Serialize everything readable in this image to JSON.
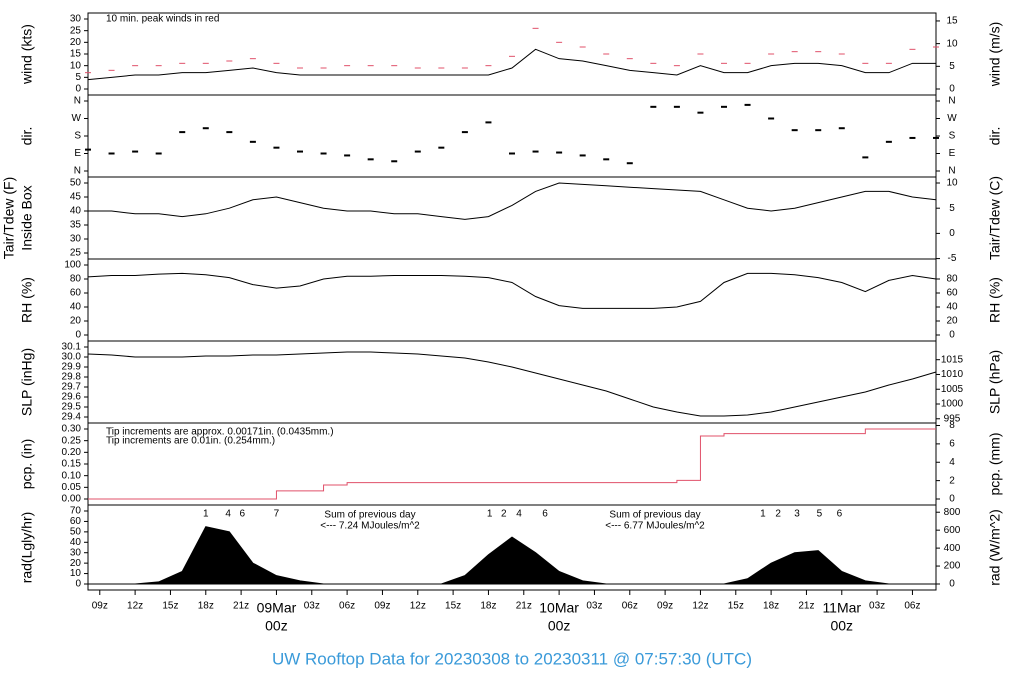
{
  "title": "UW Rooftop Data for 20230308  to  20230311 @ 07:57:30  (UTC)",
  "chart_data": [
    {
      "type": "line",
      "ylabel": "wind (kts)",
      "y2label": "wind (m/s)",
      "annotations": [
        {
          "text": "10 min. peak winds in red",
          "color": "#d0506a"
        }
      ],
      "xlim": [
        8,
        80
      ],
      "ylim": [
        0,
        30
      ],
      "yticks": [
        0,
        5,
        10,
        15,
        20,
        25,
        30
      ],
      "y2lim": [
        0,
        15.43
      ],
      "y2ticks": [
        0,
        5,
        10,
        15
      ],
      "x": [
        8,
        10,
        12,
        14,
        16,
        18,
        20,
        22,
        24,
        26,
        28,
        30,
        32,
        34,
        36,
        38,
        40,
        42,
        44,
        46,
        48,
        50,
        52,
        54,
        56,
        58,
        60,
        62,
        64,
        66,
        68,
        70,
        72,
        74,
        76,
        78,
        80
      ],
      "series": [
        {
          "color": "#000000",
          "style": "line",
          "values": [
            4,
            5,
            6,
            6,
            7,
            7,
            8,
            9,
            7,
            6,
            6,
            6,
            6,
            6,
            6,
            6,
            6,
            6,
            9,
            17,
            13,
            12,
            10,
            8,
            7,
            6,
            10,
            7,
            7,
            10,
            11,
            11,
            10,
            7,
            7,
            11,
            11
          ]
        },
        {
          "color": "#e0506a",
          "style": "dash",
          "values": [
            7,
            8,
            10,
            10,
            11,
            11,
            12,
            13,
            11,
            9,
            9,
            10,
            10,
            10,
            9,
            9,
            9,
            10,
            14,
            26,
            20,
            18,
            15,
            13,
            11,
            10,
            15,
            11,
            11,
            15,
            16,
            16,
            15,
            11,
            11,
            17,
            18
          ]
        }
      ]
    },
    {
      "type": "scatter",
      "ylabel": "dir.",
      "y2label": "dir.",
      "xlim": [
        8,
        80
      ],
      "ylim": [
        0,
        360
      ],
      "yticks": [
        {
          "value": 0,
          "label": "N"
        },
        {
          "value": 90,
          "label": "E"
        },
        {
          "value": 180,
          "label": "S"
        },
        {
          "value": 270,
          "label": "W"
        },
        {
          "value": 360,
          "label": "N"
        }
      ],
      "y2lim": [
        0,
        360
      ],
      "y2ticks": [
        {
          "value": 0,
          "label": "N"
        },
        {
          "value": 90,
          "label": "E"
        },
        {
          "value": 180,
          "label": "S"
        },
        {
          "value": 270,
          "label": "W"
        },
        {
          "value": 360,
          "label": "N"
        }
      ],
      "x": [
        8,
        10,
        12,
        14,
        16,
        18,
        20,
        22,
        24,
        26,
        28,
        30,
        32,
        34,
        36,
        38,
        40,
        42,
        44,
        46,
        48,
        50,
        52,
        54,
        56,
        58,
        60,
        62,
        64,
        66,
        68,
        70,
        72,
        74,
        76,
        78,
        80
      ],
      "series": [
        {
          "color": "#000000",
          "style": "point",
          "values": [
            110,
            90,
            100,
            90,
            200,
            220,
            200,
            150,
            120,
            100,
            90,
            80,
            60,
            50,
            100,
            120,
            200,
            250,
            90,
            100,
            95,
            80,
            60,
            40,
            330,
            330,
            300,
            330,
            340,
            270,
            210,
            210,
            220,
            70,
            150,
            170,
            170
          ]
        }
      ]
    },
    {
      "type": "line",
      "ylabel": [
        "Tair/Tdew (F)",
        "Inside Box"
      ],
      "y2label": "Tair/Tdew (C)",
      "xlim": [
        8,
        80
      ],
      "ylim": [
        25,
        50
      ],
      "yticks": [
        25,
        30,
        35,
        40,
        45,
        50
      ],
      "y2lim": [
        -3.89,
        10
      ],
      "y2ticks": [
        -5,
        0,
        5,
        10
      ],
      "x": [
        8,
        10,
        12,
        14,
        16,
        18,
        20,
        22,
        24,
        26,
        28,
        30,
        32,
        34,
        36,
        38,
        40,
        42,
        44,
        46,
        48,
        50,
        52,
        54,
        56,
        58,
        60,
        62,
        64,
        66,
        68,
        70,
        72,
        74,
        76,
        78,
        80
      ],
      "series": [
        {
          "color": "#000000",
          "style": "line",
          "values": [
            40,
            40,
            39,
            39,
            38,
            39,
            41,
            44,
            45,
            43,
            41,
            40,
            40,
            39,
            39,
            38,
            37,
            38,
            42,
            47,
            50,
            49.5,
            49,
            48.5,
            48,
            47.5,
            47,
            44,
            41,
            40,
            41,
            43,
            45,
            47,
            47,
            45,
            44
          ]
        }
      ]
    },
    {
      "type": "line",
      "ylabel": "RH (%)",
      "y2label": "RH (%)",
      "xlim": [
        8,
        80
      ],
      "ylim": [
        0,
        100
      ],
      "yticks": [
        0,
        20,
        40,
        60,
        80,
        100
      ],
      "y2lim": [
        0,
        100
      ],
      "y2ticks": [
        0,
        20,
        40,
        60,
        80
      ],
      "x": [
        8,
        10,
        12,
        14,
        16,
        18,
        20,
        22,
        24,
        26,
        28,
        30,
        32,
        34,
        36,
        38,
        40,
        42,
        44,
        46,
        48,
        50,
        52,
        54,
        56,
        58,
        60,
        62,
        64,
        66,
        68,
        70,
        72,
        74,
        76,
        78,
        80
      ],
      "series": [
        {
          "color": "#000000",
          "style": "line",
          "values": [
            83,
            85,
            85,
            87,
            88,
            86,
            82,
            72,
            67,
            70,
            80,
            84,
            84,
            85,
            85,
            85,
            84,
            82,
            75,
            55,
            42,
            38,
            38,
            38,
            38,
            40,
            48,
            75,
            88,
            88,
            86,
            82,
            75,
            62,
            78,
            85,
            80
          ]
        }
      ]
    },
    {
      "type": "line",
      "ylabel": "SLP (inHg)",
      "y2label": "SLP (hPa)",
      "xlim": [
        8,
        80
      ],
      "ylim": [
        29.4,
        30.1
      ],
      "yticks": [
        29.4,
        29.5,
        29.6,
        29.7,
        29.8,
        29.9,
        {
          "value": 30,
          "label": "30.0"
        },
        30.1
      ],
      "y2lim": [
        995.6,
        1019.3
      ],
      "y2ticks": [
        995,
        1000,
        1005,
        1010,
        1015
      ],
      "x": [
        8,
        10,
        12,
        14,
        16,
        18,
        20,
        22,
        24,
        26,
        28,
        30,
        32,
        34,
        36,
        38,
        40,
        42,
        44,
        46,
        48,
        50,
        52,
        54,
        56,
        58,
        60,
        62,
        64,
        66,
        68,
        70,
        72,
        74,
        76,
        78,
        80
      ],
      "series": [
        {
          "color": "#000000",
          "style": "line",
          "values": [
            30.03,
            30.02,
            30.0,
            30.0,
            30.0,
            30.01,
            30.01,
            30.02,
            30.02,
            30.03,
            30.04,
            30.05,
            30.05,
            30.04,
            30.03,
            30.01,
            29.99,
            29.95,
            29.9,
            29.84,
            29.78,
            29.72,
            29.66,
            29.58,
            29.5,
            29.45,
            29.41,
            29.41,
            29.42,
            29.45,
            29.5,
            29.55,
            29.6,
            29.65,
            29.72,
            29.78,
            29.85
          ]
        }
      ]
    },
    {
      "type": "step",
      "ylabel": "pcp. (in)",
      "y2label": "pcp. (mm)",
      "annotations": [
        {
          "text": "Tip increments are approx. 0.00171in. (0.0435mm.)",
          "color": "#d0506a"
        },
        {
          "text": "Tip increments are 0.01in. (0.254mm.)",
          "color": "#3a9ad9"
        }
      ],
      "xlim": [
        8,
        80
      ],
      "ylim": [
        0,
        0.3
      ],
      "yticks": [
        {
          "value": 0,
          "label": "0.00"
        },
        {
          "value": 0.05,
          "label": "0.05"
        },
        {
          "value": 0.1,
          "label": "0.10"
        },
        {
          "value": 0.15,
          "label": "0.15"
        },
        {
          "value": 0.2,
          "label": "0.20"
        },
        {
          "value": 0.25,
          "label": "0.25"
        },
        {
          "value": 0.3,
          "label": "0.30"
        }
      ],
      "y2lim": [
        0,
        7.62
      ],
      "y2ticks": [
        0,
        2,
        4,
        6,
        8
      ],
      "x": [
        8,
        10,
        12,
        14,
        16,
        18,
        20,
        22,
        24,
        26,
        28,
        30,
        32,
        34,
        36,
        38,
        40,
        42,
        44,
        46,
        48,
        50,
        52,
        54,
        56,
        58,
        60,
        62,
        64,
        66,
        68,
        70,
        72,
        74,
        76,
        78,
        80
      ],
      "series": [
        {
          "color": "#e0506a",
          "style": "step",
          "values": [
            0,
            0,
            0,
            0,
            0,
            0,
            0,
            0,
            0.035,
            0.035,
            0.06,
            0.07,
            0.07,
            0.07,
            0.07,
            0.07,
            0.07,
            0.07,
            0.07,
            0.07,
            0.07,
            0.07,
            0.07,
            0.07,
            0.07,
            0.08,
            0.27,
            0.28,
            0.28,
            0.28,
            0.28,
            0.28,
            0.28,
            0.3,
            0.3,
            0.3,
            0.3
          ]
        }
      ]
    },
    {
      "type": "area",
      "ylabel": "rad(Lgly/hr)",
      "y2label": "rad (W/m^2)",
      "annotations": [
        {
          "text": "Sum of previous day",
          "color": "#a040e0"
        },
        {
          "text": "<--- 7.24 MJoules/m^2",
          "color": "#a040e0"
        },
        {
          "text": "Sum of previous day",
          "color": "#a040e0"
        },
        {
          "text": "<--- 6.77 MJoules/m^2",
          "color": "#a040e0"
        }
      ],
      "markers": {
        "color": "#a040e0",
        "x": [
          18.0,
          19.9,
          21.1,
          24,
          42.1,
          43.3,
          44.6,
          46.8,
          65.3,
          66.6,
          68.2,
          70.1,
          71.8
        ],
        "labels": [
          "1",
          "4",
          "6",
          "7",
          "1",
          "2",
          "4",
          "6",
          "1",
          "2",
          "3",
          "5",
          "6"
        ]
      },
      "xlim": [
        8,
        80
      ],
      "ylim": [
        0,
        70
      ],
      "yticks": [
        0,
        10,
        20,
        30,
        40,
        50,
        60,
        70
      ],
      "y2lim": [
        0,
        813.6
      ],
      "y2ticks": [
        0,
        200,
        400,
        600,
        800
      ],
      "xticks": [
        {
          "value": 9,
          "label": "09z"
        },
        {
          "value": 12,
          "label": "12z"
        },
        {
          "value": 15,
          "label": "15z"
        },
        {
          "value": 18,
          "label": "18z"
        },
        {
          "value": 21,
          "label": "21z"
        },
        {
          "value": 27,
          "label": "03z"
        },
        {
          "value": 30,
          "label": "06z"
        },
        {
          "value": 33,
          "label": "09z"
        },
        {
          "value": 36,
          "label": "12z"
        },
        {
          "value": 39,
          "label": "15z"
        },
        {
          "value": 42,
          "label": "18z"
        },
        {
          "value": 45,
          "label": "21z"
        },
        {
          "value": 51,
          "label": "03z"
        },
        {
          "value": 54,
          "label": "06z"
        },
        {
          "value": 57,
          "label": "09z"
        },
        {
          "value": 60,
          "label": "12z"
        },
        {
          "value": 63,
          "label": "15z"
        },
        {
          "value": 66,
          "label": "18z"
        },
        {
          "value": 69,
          "label": "21z"
        },
        {
          "value": 75,
          "label": "03z"
        },
        {
          "value": 78,
          "label": "06z"
        }
      ],
      "day_ticks": [
        {
          "value": 24,
          "label": "09Mar",
          "sublabel": "00z"
        },
        {
          "value": 48,
          "label": "10Mar",
          "sublabel": "00z"
        },
        {
          "value": 72,
          "label": "11Mar",
          "sublabel": "00z"
        }
      ],
      "x": [
        8,
        10,
        12,
        14,
        16,
        18,
        20,
        22,
        24,
        26,
        28,
        30,
        32,
        34,
        36,
        38,
        40,
        42,
        44,
        46,
        48,
        50,
        52,
        54,
        56,
        58,
        60,
        62,
        64,
        66,
        68,
        70,
        72,
        74,
        76,
        78,
        80
      ],
      "series": [
        {
          "color": "#000000",
          "style": "area",
          "values": [
            0,
            0,
            0,
            2,
            12,
            55,
            50,
            20,
            8,
            3,
            0,
            0,
            0,
            0,
            0,
            0,
            8,
            28,
            45,
            30,
            12,
            3,
            0,
            0,
            0,
            0,
            0,
            0,
            5,
            20,
            30,
            32,
            12,
            3,
            0,
            0,
            0
          ]
        }
      ]
    }
  ]
}
